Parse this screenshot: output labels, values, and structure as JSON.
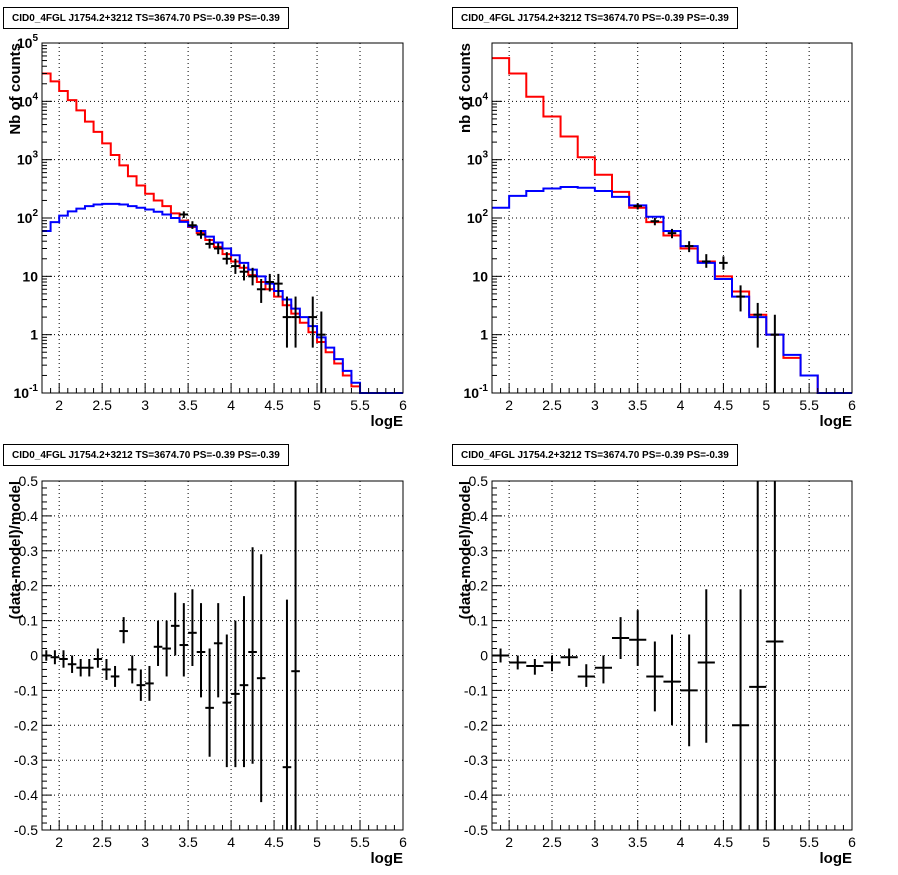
{
  "colors": {
    "data": "#000000",
    "total_model": "#ff0000",
    "source_model": "#0000ff",
    "grid": "#000000"
  },
  "chart_data": [
    {
      "type": "line",
      "title": "CID0_4FGL J1754.2+3212 TS=3674.70 PS=-0.39 PS=-0.39",
      "xlabel": "logE",
      "ylabel": "Nb of counts",
      "xlim": [
        1.8,
        6.0
      ],
      "ylim": [
        0.1,
        100000
      ],
      "yscale": "log",
      "grid": true,
      "x_ticks": [
        "2",
        "2.5",
        "3",
        "3.5",
        "4",
        "4.5",
        "5",
        "5.5",
        "6"
      ],
      "y_ticks": [
        "10^-1",
        "1",
        "10",
        "10^2",
        "10^3",
        "10^4",
        "10^5"
      ],
      "bin_edges": [
        1.8,
        1.9,
        2.0,
        2.1,
        2.2,
        2.3,
        2.4,
        2.5,
        2.6,
        2.7,
        2.8,
        2.9,
        3.0,
        3.1,
        3.2,
        3.3,
        3.4,
        3.5,
        3.6,
        3.7,
        3.8,
        3.9,
        4.0,
        4.1,
        4.2,
        4.3,
        4.4,
        4.5,
        4.6,
        4.7,
        4.8,
        4.9,
        5.0,
        5.1,
        5.2,
        5.3,
        5.4,
        5.5,
        5.6,
        5.7,
        5.8,
        5.9,
        6.0
      ],
      "series": [
        {
          "name": "",
          "role": "total_model",
          "values": [
            30000,
            22000,
            15000,
            10500,
            7000,
            4500,
            3000,
            1900,
            1200,
            800,
            520,
            360,
            260,
            200,
            160,
            120,
            90,
            70,
            55,
            42,
            32,
            24,
            18,
            14,
            10.5,
            8,
            6,
            4.5,
            3.2,
            2.3,
            1.6,
            1.1,
            0.75,
            0.5,
            0.32,
            0.2,
            0.13,
            0.1,
            0.1,
            0.1,
            0.1,
            0.1
          ]
        },
        {
          "name": "",
          "role": "source_model",
          "values": [
            60,
            85,
            110,
            130,
            145,
            160,
            170,
            175,
            175,
            170,
            160,
            150,
            140,
            128,
            115,
            100,
            86,
            72,
            60,
            48,
            38,
            30,
            23,
            17,
            13,
            10,
            7.5,
            5.6,
            4,
            2.8,
            2,
            1.4,
            0.9,
            0.6,
            0.38,
            0.24,
            0.15,
            0.1,
            0.1,
            0.1,
            0.1,
            0.1
          ]
        }
      ],
      "data_points": [
        {
          "x": 3.45,
          "y": 115,
          "ylo": 100,
          "yhi": 130
        },
        {
          "x": 3.55,
          "y": 75,
          "ylo": 65,
          "yhi": 88
        },
        {
          "x": 3.65,
          "y": 52,
          "ylo": 44,
          "yhi": 62
        },
        {
          "x": 3.75,
          "y": 36,
          "ylo": 30,
          "yhi": 44
        },
        {
          "x": 3.85,
          "y": 30,
          "ylo": 24,
          "yhi": 37
        },
        {
          "x": 3.95,
          "y": 20,
          "ylo": 16,
          "yhi": 26
        },
        {
          "x": 4.05,
          "y": 15,
          "ylo": 11,
          "yhi": 20
        },
        {
          "x": 4.15,
          "y": 12,
          "ylo": 8.5,
          "yhi": 16
        },
        {
          "x": 4.25,
          "y": 10,
          "ylo": 7,
          "yhi": 14
        },
        {
          "x": 4.35,
          "y": 6,
          "ylo": 3.5,
          "yhi": 9
        },
        {
          "x": 4.45,
          "y": 8,
          "ylo": 5.5,
          "yhi": 11
        },
        {
          "x": 4.55,
          "y": 7.5,
          "ylo": 4.5,
          "yhi": 11
        },
        {
          "x": 4.65,
          "y": 2,
          "ylo": 0.6,
          "yhi": 4.5
        },
        {
          "x": 4.75,
          "y": 2,
          "ylo": 0.6,
          "yhi": 4.5
        },
        {
          "x": 4.95,
          "y": 2,
          "ylo": 0.6,
          "yhi": 4.5
        },
        {
          "x": 5.05,
          "y": 1,
          "ylo": 0.1,
          "yhi": 2.5
        }
      ]
    },
    {
      "type": "line",
      "title": "CID0_4FGL J1754.2+3212 TS=3674.70 PS=-0.39 PS=-0.39",
      "xlabel": "logE",
      "ylabel": "nb of counts",
      "xlim": [
        1.8,
        6.0
      ],
      "ylim": [
        0.1,
        100000
      ],
      "yscale": "log",
      "grid": true,
      "x_ticks": [
        "2",
        "2.5",
        "3",
        "3.5",
        "4",
        "4.5",
        "5",
        "5.5",
        "6"
      ],
      "y_ticks": [
        "10^-1",
        "1",
        "10",
        "10^2",
        "10^3",
        "10^4"
      ],
      "bin_edges": [
        1.8,
        2.0,
        2.2,
        2.4,
        2.6,
        2.8,
        3.0,
        3.2,
        3.4,
        3.6,
        3.8,
        4.0,
        4.2,
        4.4,
        4.6,
        4.8,
        5.0,
        5.2,
        5.4,
        5.6,
        5.8,
        6.0
      ],
      "series": [
        {
          "name": "",
          "role": "total_model",
          "values": [
            55000,
            30000,
            12000,
            5500,
            2500,
            1100,
            550,
            280,
            150,
            85,
            50,
            30,
            18,
            10,
            5.5,
            2.2,
            1.0,
            0.4,
            0.2,
            0.1,
            0.1
          ]
        },
        {
          "name": "",
          "role": "source_model",
          "values": [
            150,
            240,
            290,
            320,
            340,
            330,
            290,
            230,
            165,
            105,
            60,
            33,
            17,
            9,
            4.5,
            2.0,
            1.0,
            0.45,
            0.2,
            0.1,
            0.1
          ]
        }
      ],
      "data_points": [
        {
          "x": 3.5,
          "y": 160,
          "ylo": 140,
          "yhi": 180
        },
        {
          "x": 3.7,
          "y": 88,
          "ylo": 75,
          "yhi": 100
        },
        {
          "x": 3.9,
          "y": 55,
          "ylo": 45,
          "yhi": 65
        },
        {
          "x": 4.1,
          "y": 33,
          "ylo": 26,
          "yhi": 40
        },
        {
          "x": 4.3,
          "y": 18,
          "ylo": 14,
          "yhi": 24
        },
        {
          "x": 4.5,
          "y": 17,
          "ylo": 13,
          "yhi": 22
        },
        {
          "x": 4.7,
          "y": 4.5,
          "ylo": 2.5,
          "yhi": 7
        },
        {
          "x": 4.9,
          "y": 2.2,
          "ylo": 0.6,
          "yhi": 3.5
        },
        {
          "x": 5.1,
          "y": 1,
          "ylo": 0.1,
          "yhi": 2.2
        }
      ]
    },
    {
      "type": "scatter",
      "title": "CID0_4FGL J1754.2+3212 TS=3674.70 PS=-0.39 PS=-0.39",
      "xlabel": "logE",
      "ylabel": "(data-model)/model",
      "xlim": [
        1.8,
        6.0
      ],
      "ylim": [
        -0.5,
        0.5
      ],
      "grid": true,
      "x_ticks": [
        "2",
        "2.5",
        "3",
        "3.5",
        "4",
        "4.5",
        "5",
        "5.5",
        "6"
      ],
      "y_ticks": [
        "-0.5",
        "-0.4",
        "-0.3",
        "-0.2",
        "-0.1",
        "0",
        "0.1",
        "0.2",
        "0.3",
        "0.4",
        "0.5"
      ],
      "data_points": [
        {
          "x": 1.85,
          "y": 0.0,
          "ylo": -0.015,
          "yhi": 0.015,
          "xerr": 0.05
        },
        {
          "x": 1.95,
          "y": -0.005,
          "ylo": -0.025,
          "yhi": 0.015,
          "xerr": 0.05
        },
        {
          "x": 2.05,
          "y": -0.01,
          "ylo": -0.035,
          "yhi": 0.015,
          "xerr": 0.05
        },
        {
          "x": 2.15,
          "y": -0.025,
          "ylo": -0.05,
          "yhi": 0.0,
          "xerr": 0.05
        },
        {
          "x": 2.25,
          "y": -0.035,
          "ylo": -0.06,
          "yhi": -0.01,
          "xerr": 0.05
        },
        {
          "x": 2.35,
          "y": -0.035,
          "ylo": -0.06,
          "yhi": -0.01,
          "xerr": 0.05
        },
        {
          "x": 2.45,
          "y": -0.01,
          "ylo": -0.035,
          "yhi": 0.02,
          "xerr": 0.05
        },
        {
          "x": 2.55,
          "y": -0.04,
          "ylo": -0.07,
          "yhi": -0.01,
          "xerr": 0.05
        },
        {
          "x": 2.65,
          "y": -0.06,
          "ylo": -0.09,
          "yhi": -0.03,
          "xerr": 0.05
        },
        {
          "x": 2.75,
          "y": 0.07,
          "ylo": 0.035,
          "yhi": 0.11,
          "xerr": 0.05
        },
        {
          "x": 2.85,
          "y": -0.04,
          "ylo": -0.08,
          "yhi": 0.0,
          "xerr": 0.05
        },
        {
          "x": 2.95,
          "y": -0.085,
          "ylo": -0.13,
          "yhi": -0.04,
          "xerr": 0.05
        },
        {
          "x": 3.05,
          "y": -0.08,
          "ylo": -0.13,
          "yhi": -0.03,
          "xerr": 0.05
        },
        {
          "x": 3.15,
          "y": 0.025,
          "ylo": -0.03,
          "yhi": 0.1,
          "xerr": 0.05
        },
        {
          "x": 3.25,
          "y": 0.02,
          "ylo": -0.06,
          "yhi": 0.1,
          "xerr": 0.05
        },
        {
          "x": 3.35,
          "y": 0.085,
          "ylo": 0.0,
          "yhi": 0.18,
          "xerr": 0.05
        },
        {
          "x": 3.45,
          "y": 0.03,
          "ylo": -0.06,
          "yhi": 0.15,
          "xerr": 0.05
        },
        {
          "x": 3.55,
          "y": 0.065,
          "ylo": -0.03,
          "yhi": 0.19,
          "xerr": 0.05
        },
        {
          "x": 3.65,
          "y": 0.01,
          "ylo": -0.12,
          "yhi": 0.15,
          "xerr": 0.05
        },
        {
          "x": 3.75,
          "y": -0.15,
          "ylo": -0.29,
          "yhi": 0.02,
          "xerr": 0.05
        },
        {
          "x": 3.85,
          "y": 0.035,
          "ylo": -0.12,
          "yhi": 0.15,
          "xerr": 0.05
        },
        {
          "x": 3.95,
          "y": -0.135,
          "ylo": -0.32,
          "yhi": 0.06,
          "xerr": 0.05
        },
        {
          "x": 4.05,
          "y": -0.11,
          "ylo": -0.32,
          "yhi": 0.1,
          "xerr": 0.05
        },
        {
          "x": 4.15,
          "y": -0.085,
          "ylo": -0.32,
          "yhi": 0.17,
          "xerr": 0.05
        },
        {
          "x": 4.25,
          "y": 0.01,
          "ylo": -0.31,
          "yhi": 0.31,
          "xerr": 0.05
        },
        {
          "x": 4.35,
          "y": -0.065,
          "ylo": -0.42,
          "yhi": 0.29,
          "xerr": 0.05
        },
        {
          "x": 4.65,
          "y": -0.32,
          "ylo": -0.5,
          "yhi": 0.16,
          "xerr": 0.05
        },
        {
          "x": 4.75,
          "y": -0.045,
          "ylo": -0.5,
          "yhi": 0.5,
          "xerr": 0.05
        }
      ]
    },
    {
      "type": "scatter",
      "title": "CID0_4FGL J1754.2+3212 TS=3674.70 PS=-0.39 PS=-0.39",
      "xlabel": "logE",
      "ylabel": "(data-model)/model",
      "xlim": [
        1.8,
        6.0
      ],
      "ylim": [
        -0.5,
        0.5
      ],
      "grid": true,
      "x_ticks": [
        "2",
        "2.5",
        "3",
        "3.5",
        "4",
        "4.5",
        "5",
        "5.5",
        "6"
      ],
      "y_ticks": [
        "-0.5",
        "-0.4",
        "-0.3",
        "-0.2",
        "-0.1",
        "0",
        "0.1",
        "0.2",
        "0.3",
        "0.4",
        "0.5"
      ],
      "data_points": [
        {
          "x": 1.9,
          "y": 0.0,
          "ylo": -0.02,
          "yhi": 0.02,
          "xerr": 0.1
        },
        {
          "x": 2.1,
          "y": -0.02,
          "ylo": -0.04,
          "yhi": 0.0,
          "xerr": 0.1
        },
        {
          "x": 2.3,
          "y": -0.03,
          "ylo": -0.055,
          "yhi": -0.01,
          "xerr": 0.1
        },
        {
          "x": 2.5,
          "y": -0.02,
          "ylo": -0.045,
          "yhi": 0.0,
          "xerr": 0.1
        },
        {
          "x": 2.7,
          "y": -0.005,
          "ylo": -0.03,
          "yhi": 0.02,
          "xerr": 0.1
        },
        {
          "x": 2.9,
          "y": -0.06,
          "ylo": -0.09,
          "yhi": -0.025,
          "xerr": 0.1
        },
        {
          "x": 3.1,
          "y": -0.035,
          "ylo": -0.08,
          "yhi": 0.0,
          "xerr": 0.1
        },
        {
          "x": 3.3,
          "y": 0.05,
          "ylo": -0.01,
          "yhi": 0.11,
          "xerr": 0.1
        },
        {
          "x": 3.5,
          "y": 0.045,
          "ylo": -0.03,
          "yhi": 0.13,
          "xerr": 0.1
        },
        {
          "x": 3.7,
          "y": -0.06,
          "ylo": -0.16,
          "yhi": 0.04,
          "xerr": 0.1
        },
        {
          "x": 3.9,
          "y": -0.075,
          "ylo": -0.2,
          "yhi": 0.06,
          "xerr": 0.1
        },
        {
          "x": 4.1,
          "y": -0.1,
          "ylo": -0.26,
          "yhi": 0.06,
          "xerr": 0.1
        },
        {
          "x": 4.3,
          "y": -0.02,
          "ylo": -0.25,
          "yhi": 0.19,
          "xerr": 0.1
        },
        {
          "x": 4.7,
          "y": -0.2,
          "ylo": -0.5,
          "yhi": 0.19,
          "xerr": 0.1
        },
        {
          "x": 4.9,
          "y": -0.09,
          "ylo": -0.5,
          "yhi": 0.5,
          "xerr": 0.1
        },
        {
          "x": 5.1,
          "y": 0.04,
          "ylo": -0.5,
          "yhi": 0.5,
          "xerr": 0.1
        }
      ]
    }
  ]
}
